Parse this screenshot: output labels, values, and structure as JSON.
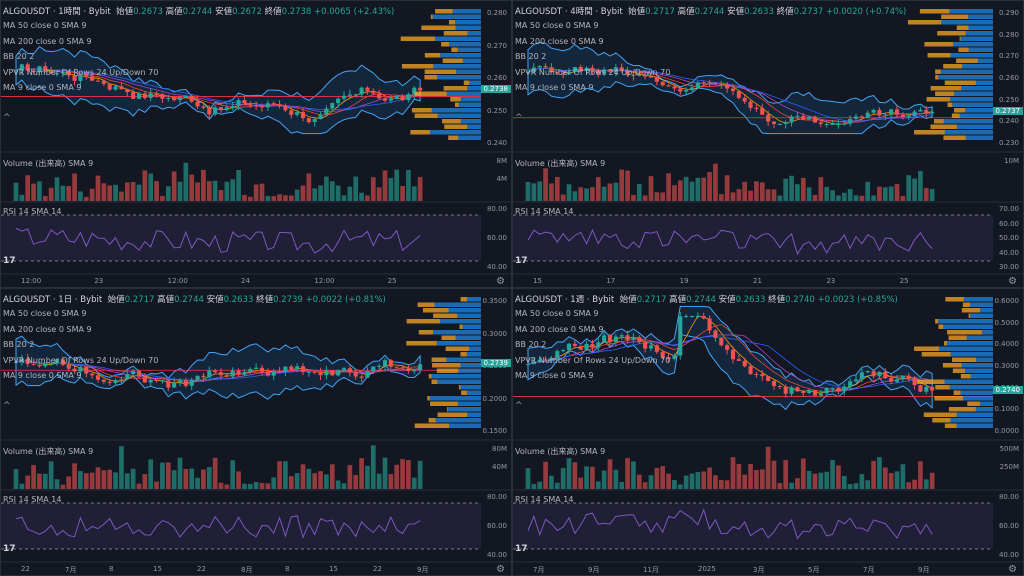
{
  "panels": [
    {
      "id": "p1h",
      "header": {
        "symbol": "ALGOUSDT · 1時間 · Bybit",
        "o_label": "始値",
        "o": "0.2673",
        "h_label": "高値",
        "h": "0.2744",
        "l_label": "安値",
        "l": "0.2672",
        "c_label": "終値",
        "c": "0.2738",
        "chg": "+0.0065 (+2.43%)"
      },
      "indicators": [
        "MA 50 close 0 SMA 9",
        "MA 200 close 0 SMA 9",
        "BB 20 2",
        "VPVR Number Of Rows 24 Up/Down 70",
        "MA 9 close 0 SMA 9"
      ],
      "price_badge": "0.2738",
      "y_ticks": [
        "0.280",
        "0.270",
        "0.260",
        "0.250",
        "0.240"
      ],
      "volume_label": "Volume (出来高) SMA 9",
      "vol_ticks": [
        "8M",
        "4M"
      ],
      "rsi_label": "RSI 14 SMA 14",
      "rsi_ticks": [
        "80.00",
        "60.00",
        "40.00"
      ],
      "x_ticks": [
        "12:00",
        "23",
        "12:00",
        "24",
        "12:00",
        "25"
      ]
    },
    {
      "id": "p4h",
      "header": {
        "symbol": "ALGOUSDT · 4時間 · Bybit",
        "o_label": "始値",
        "o": "0.2717",
        "h_label": "高値",
        "h": "0.2744",
        "l_label": "安値",
        "l": "0.2633",
        "c_label": "終値",
        "c": "0.2737",
        "chg": "+0.0020 (+0.74%)"
      },
      "indicators": [
        "MA 50 close 0 SMA 9",
        "MA 200 close 0 SMA 9",
        "BB 20 2",
        "VPVR Number Of Rows 24 Up/Down 70",
        "MA 9 close 0 SMA 9"
      ],
      "price_badge": "0.2737",
      "y_ticks": [
        "0.290",
        "0.280",
        "0.270",
        "0.260",
        "0.250",
        "0.240",
        "0.230"
      ],
      "volume_label": "Volume (出来高) SMA 9",
      "vol_ticks": [
        "10M"
      ],
      "rsi_label": "RSI 14 SMA 14",
      "rsi_ticks": [
        "70.00",
        "60.00",
        "50.00",
        "40.00",
        "30.00"
      ],
      "x_ticks": [
        "15",
        "17",
        "19",
        "21",
        "23",
        "25"
      ]
    },
    {
      "id": "p1d",
      "header": {
        "symbol": "ALGOUSDT · 1日 · Bybit",
        "o_label": "始値",
        "o": "0.2717",
        "h_label": "高値",
        "h": "0.2744",
        "l_label": "安値",
        "l": "0.2633",
        "c_label": "終値",
        "c": "0.2739",
        "chg": "+0.0022 (+0.81%)"
      },
      "indicators": [
        "MA 50 close 0 SMA 9",
        "MA 200 close 0 SMA 9",
        "BB 20 2",
        "VPVR Number Of Rows 24 Up/Down 70",
        "MA 9 close 0 SMA 9"
      ],
      "price_badge": "0.2739",
      "y_ticks": [
        "0.3500",
        "0.3000",
        "0.2500",
        "0.2000",
        "0.1500"
      ],
      "volume_label": "Volume (出来高) SMA 9",
      "vol_ticks": [
        "80M",
        "40M"
      ],
      "rsi_label": "RSI 14 SMA 14",
      "rsi_ticks": [
        "80.00",
        "60.00",
        "40.00"
      ],
      "x_ticks": [
        "22",
        "7月",
        "8",
        "15",
        "22",
        "8月",
        "8",
        "15",
        "22",
        "9月"
      ]
    },
    {
      "id": "p1w",
      "header": {
        "symbol": "ALGOUSDT · 1週 · Bybit",
        "o_label": "始値",
        "o": "0.2717",
        "h_label": "高値",
        "h": "0.2744",
        "l_label": "安値",
        "l": "0.2633",
        "c_label": "終値",
        "c": "0.2740",
        "chg": "+0.0023 (+0.85%)"
      },
      "indicators": [
        "MA 50 close 0 SMA 9",
        "MA 200 close 0 SMA 9",
        "BB 20 2",
        "VPVR Number Of Rows 24 Up/Down 70",
        "MA 9 close 0 SMA 9"
      ],
      "price_badge": "0.2740",
      "y_ticks": [
        "0.6000",
        "0.5000",
        "0.4000",
        "0.3000",
        "0.2000",
        "0.1000",
        "0.0000"
      ],
      "volume_label": "Volume (出来高) SMA 9",
      "vol_ticks": [
        "500M",
        "250M"
      ],
      "rsi_label": "RSI 14 SMA 14",
      "rsi_ticks": [
        "80.00",
        "60.00",
        "40.00"
      ],
      "x_ticks": [
        "7月",
        "9月",
        "11月",
        "2025",
        "3月",
        "5月",
        "7月",
        "9月"
      ]
    }
  ],
  "colors": {
    "up": "#26a69a",
    "down": "#ef5350",
    "bb": "#2962ff",
    "rsi": "#7e57c2",
    "vpvr_up": "#1e88e5",
    "vpvr_down": "#f9a825"
  }
}
